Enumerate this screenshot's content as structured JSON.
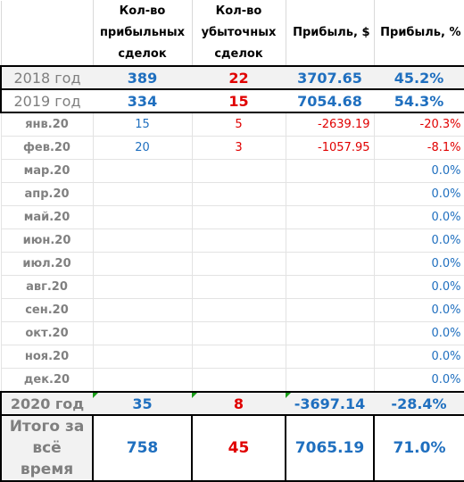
{
  "header": {
    "col_profitable": "Кол-во прибыльных сделок",
    "col_losing": "Кол-во убыточных сделок",
    "col_profit_usd": "Прибыль, $",
    "col_profit_pct": "Прибыль, %"
  },
  "years": [
    {
      "label": "2018 год",
      "profitable": "389",
      "losing": "22",
      "profit_usd": "3707.65",
      "profit_pct": "45.2%"
    },
    {
      "label": "2019 год",
      "profitable": "334",
      "losing": "15",
      "profit_usd": "7054.68",
      "profit_pct": "54.3%"
    }
  ],
  "months": [
    {
      "label": "янв.20",
      "profitable": "15",
      "losing": "5",
      "profit_usd": "-2639.19",
      "profit_pct": "-20.3%"
    },
    {
      "label": "фев.20",
      "profitable": "20",
      "losing": "3",
      "profit_usd": "-1057.95",
      "profit_pct": "-8.1%"
    },
    {
      "label": "мар.20",
      "profitable": "",
      "losing": "",
      "profit_usd": "",
      "profit_pct": "0.0%"
    },
    {
      "label": "апр.20",
      "profitable": "",
      "losing": "",
      "profit_usd": "",
      "profit_pct": "0.0%"
    },
    {
      "label": "май.20",
      "profitable": "",
      "losing": "",
      "profit_usd": "",
      "profit_pct": "0.0%"
    },
    {
      "label": "июн.20",
      "profitable": "",
      "losing": "",
      "profit_usd": "",
      "profit_pct": "0.0%"
    },
    {
      "label": "июл.20",
      "profitable": "",
      "losing": "",
      "profit_usd": "",
      "profit_pct": "0.0%"
    },
    {
      "label": "авг.20",
      "profitable": "",
      "losing": "",
      "profit_usd": "",
      "profit_pct": "0.0%"
    },
    {
      "label": "сен.20",
      "profitable": "",
      "losing": "",
      "profit_usd": "",
      "profit_pct": "0.0%"
    },
    {
      "label": "окт.20",
      "profitable": "",
      "losing": "",
      "profit_usd": "",
      "profit_pct": "0.0%"
    },
    {
      "label": "ноя.20",
      "profitable": "",
      "losing": "",
      "profit_usd": "",
      "profit_pct": "0.0%"
    },
    {
      "label": "дек.20",
      "profitable": "",
      "losing": "",
      "profit_usd": "",
      "profit_pct": "0.0%"
    }
  ],
  "year2020": {
    "label": "2020 год",
    "profitable": "35",
    "losing": "8",
    "profit_usd": "-3697.14",
    "profit_pct": "-28.4%"
  },
  "total": {
    "label": "Итого за всё время",
    "profitable": "758",
    "losing": "45",
    "profit_usd": "7065.19",
    "profit_pct": "71.0%"
  },
  "colors": {
    "profit_blue": "#1f6fbf",
    "loss_red": "#e00000",
    "label_grey": "#7f7f7f",
    "comment_marker": "#1a9e1a"
  }
}
